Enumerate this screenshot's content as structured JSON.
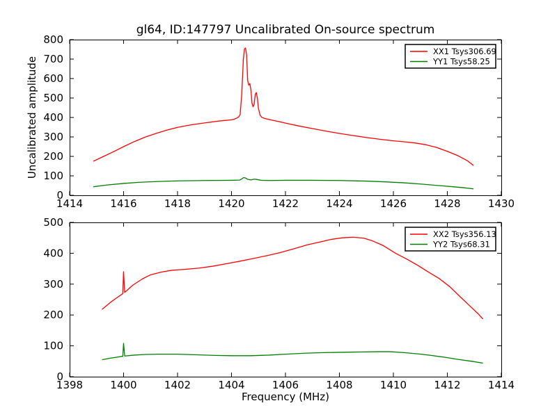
{
  "title": "gl64, ID:147797 Uncalibrated On-source spectrum",
  "chart_data": [
    {
      "name": "top-spectrum",
      "type": "line",
      "title": "",
      "xlabel": "",
      "ylabel": "Uncalibrated amplitude",
      "xlim": [
        1414,
        1430
      ],
      "ylim": [
        0,
        800
      ],
      "xticks": [
        1414,
        1416,
        1418,
        1420,
        1422,
        1424,
        1426,
        1428,
        1430
      ],
      "yticks": [
        0,
        100,
        200,
        300,
        400,
        500,
        600,
        700,
        800
      ],
      "grid": false,
      "legend_position": "upper right",
      "series": [
        {
          "name": "XX1 Tsys306.69",
          "color": "#ff0000",
          "points": [
            [
              1414.88,
              175
            ],
            [
              1415.2,
              196
            ],
            [
              1415.6,
              222
            ],
            [
              1416.0,
              250
            ],
            [
              1416.4,
              276
            ],
            [
              1416.8,
              299
            ],
            [
              1417.2,
              318
            ],
            [
              1417.6,
              335
            ],
            [
              1418.0,
              349
            ],
            [
              1418.5,
              362
            ],
            [
              1419.0,
              372
            ],
            [
              1419.5,
              381
            ],
            [
              1420.0,
              388
            ],
            [
              1420.1,
              391
            ],
            [
              1420.2,
              397
            ],
            [
              1420.27,
              403
            ],
            [
              1420.32,
              415
            ],
            [
              1420.38,
              520
            ],
            [
              1420.44,
              700
            ],
            [
              1420.48,
              752
            ],
            [
              1420.52,
              757
            ],
            [
              1420.56,
              722
            ],
            [
              1420.6,
              590
            ],
            [
              1420.64,
              566
            ],
            [
              1420.68,
              574
            ],
            [
              1420.72,
              542
            ],
            [
              1420.76,
              472
            ],
            [
              1420.8,
              455
            ],
            [
              1420.84,
              468
            ],
            [
              1420.88,
              518
            ],
            [
              1420.92,
              528
            ],
            [
              1420.96,
              498
            ],
            [
              1421.0,
              446
            ],
            [
              1421.06,
              412
            ],
            [
              1421.12,
              401
            ],
            [
              1421.25,
              394
            ],
            [
              1421.5,
              386
            ],
            [
              1421.75,
              379
            ],
            [
              1422.0,
              371
            ],
            [
              1422.5,
              356
            ],
            [
              1423.0,
              343
            ],
            [
              1423.5,
              330
            ],
            [
              1424.0,
              318
            ],
            [
              1424.5,
              307
            ],
            [
              1425.0,
              297
            ],
            [
              1425.5,
              288
            ],
            [
              1426.0,
              280
            ],
            [
              1426.4,
              275
            ],
            [
              1426.8,
              269
            ],
            [
              1427.2,
              260
            ],
            [
              1427.6,
              246
            ],
            [
              1428.0,
              226
            ],
            [
              1428.4,
              203
            ],
            [
              1428.75,
              177
            ],
            [
              1428.97,
              153
            ]
          ]
        },
        {
          "name": "YY1 Tsys58.25",
          "color": "#007f00",
          "points": [
            [
              1414.88,
              44
            ],
            [
              1415.4,
              53
            ],
            [
              1416.0,
              61
            ],
            [
              1416.6,
              67
            ],
            [
              1417.3,
              71
            ],
            [
              1418.0,
              74
            ],
            [
              1419.0,
              76
            ],
            [
              1420.0,
              77
            ],
            [
              1420.3,
              78
            ],
            [
              1420.38,
              84
            ],
            [
              1420.45,
              91
            ],
            [
              1420.52,
              89
            ],
            [
              1420.6,
              82
            ],
            [
              1420.72,
              79
            ],
            [
              1420.85,
              83
            ],
            [
              1420.95,
              81
            ],
            [
              1421.1,
              77
            ],
            [
              1421.4,
              76
            ],
            [
              1422.0,
              77
            ],
            [
              1423.0,
              77
            ],
            [
              1424.0,
              76
            ],
            [
              1425.0,
              73
            ],
            [
              1425.7,
              69
            ],
            [
              1426.4,
              64
            ],
            [
              1427.0,
              58
            ],
            [
              1427.6,
              51
            ],
            [
              1428.2,
              44
            ],
            [
              1428.6,
              39
            ],
            [
              1428.97,
              33
            ]
          ]
        }
      ],
      "legend": [
        {
          "label": "XX1 Tsys306.69",
          "color": "#ff0000"
        },
        {
          "label": "YY1 Tsys58.25",
          "color": "#007f00"
        }
      ]
    },
    {
      "name": "bottom-spectrum",
      "type": "line",
      "title": "",
      "xlabel": "Frequency (MHz)",
      "ylabel": "",
      "xlim": [
        1398,
        1414
      ],
      "ylim": [
        0,
        500
      ],
      "xticks": [
        1398,
        1400,
        1402,
        1404,
        1406,
        1408,
        1410,
        1412,
        1414
      ],
      "yticks": [
        0,
        100,
        200,
        300,
        400,
        500
      ],
      "grid": false,
      "legend_position": "upper right",
      "series": [
        {
          "name": "XX2 Tsys356.13",
          "color": "#ff0000",
          "points": [
            [
              1399.2,
              218
            ],
            [
              1399.5,
              240
            ],
            [
              1399.8,
              259
            ],
            [
              1399.97,
              269
            ],
            [
              1400.0,
              340
            ],
            [
              1400.04,
              273
            ],
            [
              1400.35,
              297
            ],
            [
              1400.7,
              317
            ],
            [
              1401.0,
              330
            ],
            [
              1401.4,
              339
            ],
            [
              1401.8,
              345
            ],
            [
              1402.3,
              348
            ],
            [
              1402.8,
              352
            ],
            [
              1403.3,
              358
            ],
            [
              1403.8,
              366
            ],
            [
              1404.3,
              374
            ],
            [
              1404.8,
              383
            ],
            [
              1405.3,
              392
            ],
            [
              1405.8,
              402
            ],
            [
              1406.3,
              414
            ],
            [
              1406.8,
              427
            ],
            [
              1407.3,
              437
            ],
            [
              1407.7,
              445
            ],
            [
              1408.1,
              450
            ],
            [
              1408.5,
              452
            ],
            [
              1408.9,
              449
            ],
            [
              1409.2,
              441
            ],
            [
              1409.6,
              426
            ],
            [
              1410.1,
              399
            ],
            [
              1410.5,
              381
            ],
            [
              1410.9,
              361
            ],
            [
              1411.3,
              339
            ],
            [
              1411.7,
              318
            ],
            [
              1412.1,
              291
            ],
            [
              1412.5,
              257
            ],
            [
              1412.9,
              224
            ],
            [
              1413.15,
              203
            ],
            [
              1413.32,
              187
            ]
          ]
        },
        {
          "name": "YY2 Tsys68.31",
          "color": "#007f00",
          "points": [
            [
              1399.2,
              55
            ],
            [
              1399.5,
              60
            ],
            [
              1399.8,
              64
            ],
            [
              1399.97,
              66
            ],
            [
              1400.0,
              108
            ],
            [
              1400.04,
              67
            ],
            [
              1400.4,
              70
            ],
            [
              1400.8,
              72
            ],
            [
              1401.3,
              73
            ],
            [
              1402.0,
              73
            ],
            [
              1402.7,
              71
            ],
            [
              1403.4,
              69
            ],
            [
              1404.0,
              68
            ],
            [
              1404.7,
              68
            ],
            [
              1405.4,
              70
            ],
            [
              1406.0,
              73
            ],
            [
              1406.7,
              76
            ],
            [
              1407.4,
              78
            ],
            [
              1408.0,
              79
            ],
            [
              1408.7,
              80
            ],
            [
              1409.4,
              81
            ],
            [
              1409.9,
              81
            ],
            [
              1410.4,
              78
            ],
            [
              1410.9,
              74
            ],
            [
              1411.4,
              69
            ],
            [
              1411.9,
              63
            ],
            [
              1412.4,
              56
            ],
            [
              1412.9,
              50
            ],
            [
              1413.32,
              44
            ]
          ]
        }
      ],
      "legend": [
        {
          "label": "XX2 Tsys356.13",
          "color": "#ff0000"
        },
        {
          "label": "YY2 Tsys68.31",
          "color": "#007f00"
        }
      ]
    }
  ]
}
